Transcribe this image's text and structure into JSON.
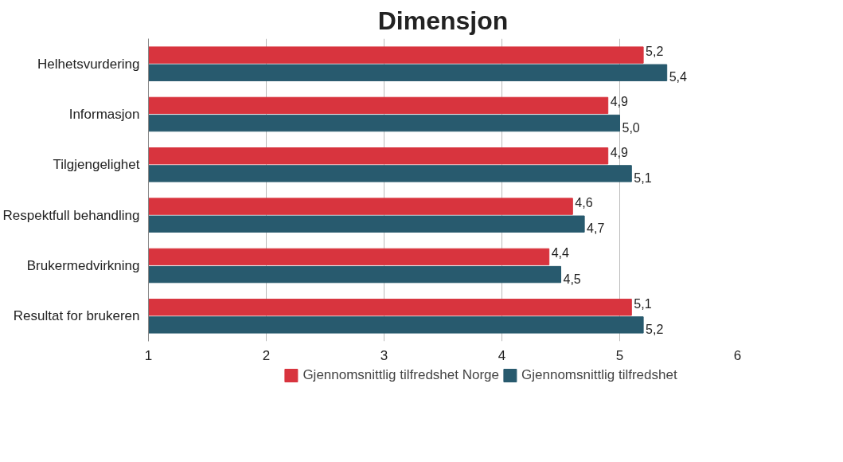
{
  "chart_data": {
    "type": "bar",
    "orientation": "horizontal",
    "title": "Dimensjon",
    "categories": [
      "Helhetsvurdering",
      "Informasjon",
      "Tilgjengelighet",
      "Respektfull behandling",
      "Brukermedvirkning",
      "Resultat for brukeren"
    ],
    "series": [
      {
        "name": "Gjennomsnittlig tilfredshet Norge",
        "color": "#d8343e",
        "values": [
          5.2,
          4.9,
          4.9,
          4.6,
          4.4,
          5.1
        ],
        "value_labels": [
          "5,2",
          "4,9",
          "4,9",
          "4,6",
          "4,4",
          "5,1"
        ]
      },
      {
        "name": "Gjennomsnittlig tilfredshet",
        "color": "#285a6e",
        "values": [
          5.4,
          5.0,
          5.1,
          4.7,
          4.5,
          5.2
        ],
        "value_labels": [
          "5,4",
          "5,0",
          "5,1",
          "4,7",
          "4,5",
          "5,2"
        ]
      }
    ],
    "xlim": [
      1,
      6
    ],
    "xticks": [
      1,
      2,
      3,
      4,
      5,
      6
    ],
    "grid": "x",
    "legend": "bottom"
  }
}
